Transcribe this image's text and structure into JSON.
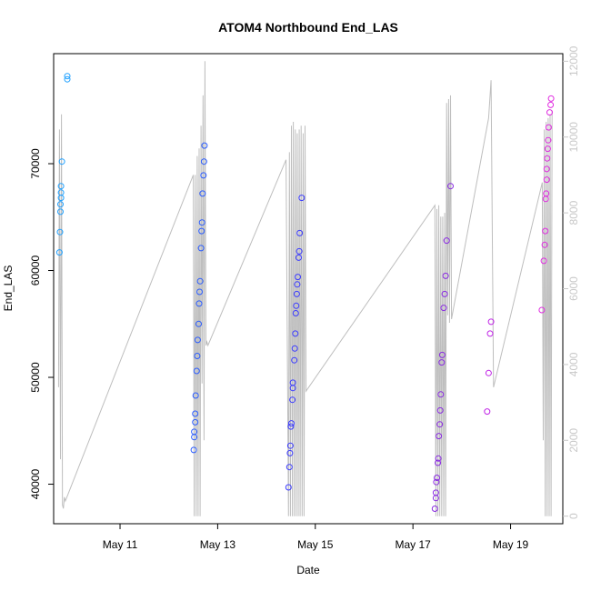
{
  "chart_data": {
    "type": "scatter",
    "title": "ATOM4 Northbound End_LAS",
    "xlabel": "Date",
    "ylabel": "End_LAS",
    "x_unit": "days (May)",
    "xlim": [
      9.64,
      20.07
    ],
    "ylim": [
      36300,
      80300
    ],
    "y2lim": [
      -200,
      12200
    ],
    "x_ticks": [
      11,
      13,
      15,
      17,
      19
    ],
    "x_tick_labels": [
      "May 11",
      "May 13",
      "May 15",
      "May 17",
      "May 19"
    ],
    "y_ticks": [
      40000,
      50000,
      60000,
      70000
    ],
    "y_tick_labels": [
      "40000",
      "50000",
      "60000",
      "70000"
    ],
    "y2_ticks": [
      0,
      2000,
      4000,
      6000,
      8000,
      10000,
      12000
    ],
    "y2_tick_labels": [
      "0",
      "2000",
      "4000",
      "6000",
      "8000",
      "10000",
      "12000"
    ],
    "points": [
      {
        "x": 9.76,
        "y": 61700,
        "color": "#1ea0ff"
      },
      {
        "x": 9.77,
        "y": 63600,
        "color": "#1ea0ff"
      },
      {
        "x": 9.78,
        "y": 65500,
        "color": "#1ea0ff"
      },
      {
        "x": 9.78,
        "y": 66200,
        "color": "#1ea0ff"
      },
      {
        "x": 9.79,
        "y": 66800,
        "color": "#1ea0ff"
      },
      {
        "x": 9.79,
        "y": 67300,
        "color": "#1ea0ff"
      },
      {
        "x": 9.79,
        "y": 67900,
        "color": "#1ea0ff"
      },
      {
        "x": 9.81,
        "y": 70200,
        "color": "#1ea0ff"
      },
      {
        "x": 9.92,
        "y": 77900,
        "color": "#1ea0ff"
      },
      {
        "x": 9.92,
        "y": 78200,
        "color": "#1ea0ff"
      },
      {
        "x": 12.51,
        "y": 43200,
        "color": "#2a5cff"
      },
      {
        "x": 12.52,
        "y": 44400,
        "color": "#2a5cff"
      },
      {
        "x": 12.52,
        "y": 44900,
        "color": "#2a5cff"
      },
      {
        "x": 12.54,
        "y": 45800,
        "color": "#2a5cff"
      },
      {
        "x": 12.54,
        "y": 46600,
        "color": "#2a5cff"
      },
      {
        "x": 12.55,
        "y": 48300,
        "color": "#2a5cff"
      },
      {
        "x": 12.57,
        "y": 50600,
        "color": "#2a5cff"
      },
      {
        "x": 12.58,
        "y": 52000,
        "color": "#2a5cff"
      },
      {
        "x": 12.59,
        "y": 53500,
        "color": "#2a5cff"
      },
      {
        "x": 12.61,
        "y": 55000,
        "color": "#2a5cff"
      },
      {
        "x": 12.62,
        "y": 56900,
        "color": "#2a5cff"
      },
      {
        "x": 12.63,
        "y": 58000,
        "color": "#2a5cff"
      },
      {
        "x": 12.64,
        "y": 59000,
        "color": "#2a5cff"
      },
      {
        "x": 12.66,
        "y": 62100,
        "color": "#2a5cff"
      },
      {
        "x": 12.67,
        "y": 63700,
        "color": "#2a5cff"
      },
      {
        "x": 12.68,
        "y": 64500,
        "color": "#2a5cff"
      },
      {
        "x": 12.69,
        "y": 67200,
        "color": "#2a5cff"
      },
      {
        "x": 12.71,
        "y": 68900,
        "color": "#2a5cff"
      },
      {
        "x": 12.72,
        "y": 70200,
        "color": "#2a5cff"
      },
      {
        "x": 12.73,
        "y": 71700,
        "color": "#2a5cff"
      },
      {
        "x": 14.45,
        "y": 39700,
        "color": "#3c3cff"
      },
      {
        "x": 14.47,
        "y": 41600,
        "color": "#3c3cff"
      },
      {
        "x": 14.48,
        "y": 42900,
        "color": "#3c3cff"
      },
      {
        "x": 14.49,
        "y": 43600,
        "color": "#3c3cff"
      },
      {
        "x": 14.5,
        "y": 45400,
        "color": "#3c3cff"
      },
      {
        "x": 14.51,
        "y": 45700,
        "color": "#3c3cff"
      },
      {
        "x": 14.53,
        "y": 47900,
        "color": "#3c3cff"
      },
      {
        "x": 14.54,
        "y": 49000,
        "color": "#3c3cff"
      },
      {
        "x": 14.54,
        "y": 49500,
        "color": "#3c3cff"
      },
      {
        "x": 14.57,
        "y": 51600,
        "color": "#3c3cff"
      },
      {
        "x": 14.58,
        "y": 52700,
        "color": "#3c3cff"
      },
      {
        "x": 14.59,
        "y": 54100,
        "color": "#3c3cff"
      },
      {
        "x": 14.6,
        "y": 56000,
        "color": "#3c3cff"
      },
      {
        "x": 14.61,
        "y": 56700,
        "color": "#3c3cff"
      },
      {
        "x": 14.62,
        "y": 57800,
        "color": "#3c3cff"
      },
      {
        "x": 14.63,
        "y": 58700,
        "color": "#3c3cff"
      },
      {
        "x": 14.64,
        "y": 59400,
        "color": "#3c3cff"
      },
      {
        "x": 14.66,
        "y": 61200,
        "color": "#3c3cff"
      },
      {
        "x": 14.67,
        "y": 61800,
        "color": "#3c3cff"
      },
      {
        "x": 14.68,
        "y": 63500,
        "color": "#3c3cff"
      },
      {
        "x": 14.72,
        "y": 66800,
        "color": "#3c3cff"
      },
      {
        "x": 17.45,
        "y": 37700,
        "color": "#8a2be2"
      },
      {
        "x": 17.47,
        "y": 38700,
        "color": "#8a2be2"
      },
      {
        "x": 17.47,
        "y": 39200,
        "color": "#8a2be2"
      },
      {
        "x": 17.48,
        "y": 40200,
        "color": "#8a2be2"
      },
      {
        "x": 17.49,
        "y": 40600,
        "color": "#8a2be2"
      },
      {
        "x": 17.51,
        "y": 42000,
        "color": "#8a2be2"
      },
      {
        "x": 17.52,
        "y": 42400,
        "color": "#8a2be2"
      },
      {
        "x": 17.53,
        "y": 44500,
        "color": "#8a2be2"
      },
      {
        "x": 17.55,
        "y": 45600,
        "color": "#8a2be2"
      },
      {
        "x": 17.56,
        "y": 46900,
        "color": "#8a2be2"
      },
      {
        "x": 17.57,
        "y": 48400,
        "color": "#8a2be2"
      },
      {
        "x": 17.59,
        "y": 51400,
        "color": "#8a2be2"
      },
      {
        "x": 17.6,
        "y": 52100,
        "color": "#8a2be2"
      },
      {
        "x": 17.63,
        "y": 56500,
        "color": "#8a2be2"
      },
      {
        "x": 17.65,
        "y": 57800,
        "color": "#8a2be2"
      },
      {
        "x": 17.67,
        "y": 59500,
        "color": "#8a2be2"
      },
      {
        "x": 17.69,
        "y": 62800,
        "color": "#8a2be2"
      },
      {
        "x": 17.77,
        "y": 67900,
        "color": "#8a2be2"
      },
      {
        "x": 18.52,
        "y": 46800,
        "color": "#c023e6"
      },
      {
        "x": 18.55,
        "y": 50400,
        "color": "#c023e6"
      },
      {
        "x": 18.58,
        "y": 54100,
        "color": "#c023e6"
      },
      {
        "x": 18.6,
        "y": 55200,
        "color": "#c023e6"
      },
      {
        "x": 19.64,
        "y": 56300,
        "color": "#e02ce0"
      },
      {
        "x": 19.68,
        "y": 60900,
        "color": "#e02ce0"
      },
      {
        "x": 19.7,
        "y": 62400,
        "color": "#e02ce0"
      },
      {
        "x": 19.71,
        "y": 63700,
        "color": "#e02ce0"
      },
      {
        "x": 19.72,
        "y": 66700,
        "color": "#e02ce0"
      },
      {
        "x": 19.73,
        "y": 67200,
        "color": "#e02ce0"
      },
      {
        "x": 19.74,
        "y": 68500,
        "color": "#e02ce0"
      },
      {
        "x": 19.74,
        "y": 69500,
        "color": "#e02ce0"
      },
      {
        "x": 19.75,
        "y": 70500,
        "color": "#e02ce0"
      },
      {
        "x": 19.76,
        "y": 71400,
        "color": "#e02ce0"
      },
      {
        "x": 19.77,
        "y": 72200,
        "color": "#e02ce0"
      },
      {
        "x": 19.78,
        "y": 73400,
        "color": "#e02ce0"
      },
      {
        "x": 19.8,
        "y": 74800,
        "color": "#e02ce0"
      },
      {
        "x": 19.82,
        "y": 75500,
        "color": "#e02ce0"
      },
      {
        "x": 19.83,
        "y": 76100,
        "color": "#e02ce0"
      }
    ],
    "secondary_line": {
      "axis": "right",
      "color": "#bebebe",
      "x": [
        9.74,
        9.76,
        9.78,
        9.8,
        9.82,
        9.84,
        9.86,
        9.88,
        12.5,
        12.52,
        12.54,
        12.56,
        12.58,
        12.6,
        12.62,
        12.64,
        12.66,
        12.68,
        12.7,
        12.72,
        12.74,
        12.76,
        12.78,
        12.8,
        14.4,
        14.45,
        14.47,
        14.49,
        14.51,
        14.53,
        14.55,
        14.57,
        14.59,
        14.61,
        14.63,
        14.65,
        14.67,
        14.69,
        14.71,
        14.73,
        14.75,
        14.77,
        14.79,
        14.81,
        17.45,
        17.47,
        17.49,
        17.51,
        17.53,
        17.55,
        17.57,
        17.59,
        17.61,
        17.63,
        17.65,
        17.67,
        17.69,
        17.71,
        17.73,
        17.75,
        17.77,
        17.79,
        18.55,
        18.6,
        18.65,
        19.65,
        19.67,
        19.69,
        19.71,
        19.73,
        19.75,
        19.77,
        19.79,
        19.81,
        19.83,
        19.85
      ],
      "y": [
        3400,
        10200,
        1500,
        10600,
        300,
        200,
        500,
        400,
        9000,
        0,
        9000,
        0,
        9500,
        0,
        9700,
        0,
        10300,
        3500,
        11100,
        2000,
        12000,
        4500,
        4600,
        4500,
        9400,
        0,
        9600,
        0,
        10300,
        0,
        10400,
        0,
        10200,
        0,
        10100,
        0,
        10200,
        0,
        10300,
        0,
        10100,
        0,
        10300,
        3300,
        8200,
        0,
        8100,
        0,
        8200,
        0,
        7900,
        0,
        7900,
        0,
        8000,
        0,
        10900,
        5300,
        11000,
        5100,
        11100,
        5200,
        10500,
        11500,
        3400,
        8800,
        2000,
        10200,
        0,
        10400,
        0,
        10500,
        0,
        10600,
        0,
        10700
      ]
    }
  }
}
